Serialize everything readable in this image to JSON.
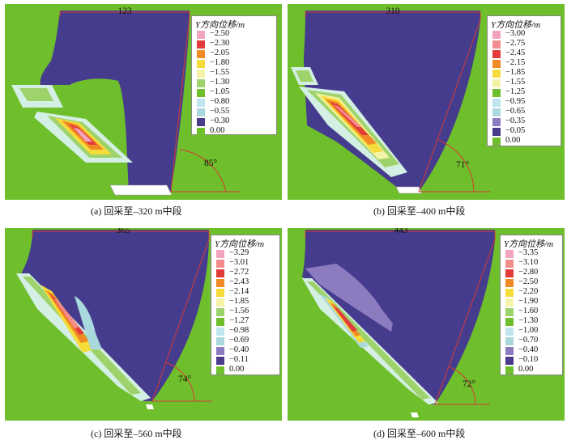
{
  "panels": [
    {
      "id": "a",
      "top_label": "123",
      "angle_label": "85°",
      "caption": "(a) 回采至–320 m中段",
      "legend_title": "Y方向位移/m",
      "legend_values": [
        "−2.50",
        "−2.30",
        "−2.05",
        "−1.80",
        "−1.55",
        "−1.30",
        "−1.05",
        "−0.80",
        "−0.55",
        "−0.30",
        "0.00"
      ],
      "legend_colors": [
        "#f2a3bd",
        "#e23b3b",
        "#f08a24",
        "#f6dc3a",
        "#f4f3a8",
        "#9ed36b",
        "#6fbf2d",
        "#bfe6f0",
        "#a9d8dd",
        "#4a3b8c",
        "#6fbf2d"
      ]
    },
    {
      "id": "b",
      "top_label": "310",
      "angle_label": "71°",
      "caption": "(b) 回采至–400 m中段",
      "legend_title": "Y方向位移/m",
      "legend_values": [
        "−3.00",
        "−2.75",
        "−2.45",
        "−2.15",
        "−1.85",
        "−1.55",
        "−1.25",
        "−0.95",
        "−0.65",
        "−0.35",
        "−0.05",
        "0.00"
      ],
      "legend_colors": [
        "#f2a3bd",
        "#f38c8c",
        "#e23b3b",
        "#f08a24",
        "#f6dc3a",
        "#f4f3a8",
        "#6fbf2d",
        "#bfe6f0",
        "#a9d8dd",
        "#8d7bc0",
        "#4a3b8c",
        "#6fbf2d"
      ]
    },
    {
      "id": "c",
      "top_label": "365",
      "angle_label": "74°",
      "caption": "(c) 回采至–560 m中段",
      "legend_title": "Y方向位移/m",
      "legend_values": [
        "−3.29",
        "−3.01",
        "−2.72",
        "−2.43",
        "−2.14",
        "−1.85",
        "−1.56",
        "−1.27",
        "−0.98",
        "−0.69",
        "−0.40",
        "−0.11",
        "0.00"
      ],
      "legend_colors": [
        "#f2a3bd",
        "#f38c8c",
        "#e23b3b",
        "#f08a24",
        "#f6dc3a",
        "#f4f3a8",
        "#9ed36b",
        "#6fbf2d",
        "#bfe6f0",
        "#a9d8dd",
        "#8d7bc0",
        "#4a3b8c",
        "#6fbf2d"
      ]
    },
    {
      "id": "d",
      "top_label": "443",
      "angle_label": "72°",
      "caption": "(d) 回采至–600 m中段",
      "legend_title": "Y方向位移/m",
      "legend_values": [
        "−3.35",
        "−3.10",
        "−2.80",
        "−2.50",
        "−2.20",
        "−1.90",
        "−1.60",
        "−1.30",
        "−1.00",
        "−0.70",
        "−0.40",
        "−0.10",
        "0.00"
      ],
      "legend_colors": [
        "#f2a3bd",
        "#f38c8c",
        "#e23b3b",
        "#f08a24",
        "#f6dc3a",
        "#f4f3a8",
        "#9ed36b",
        "#6fbf2d",
        "#bfe6f0",
        "#a9d8dd",
        "#8d7bc0",
        "#4a3b8c",
        "#6fbf2d"
      ]
    }
  ],
  "colors": {
    "ground": "#6fbf2d",
    "cave": "#463c8e",
    "outline": "#d63a2f"
  }
}
